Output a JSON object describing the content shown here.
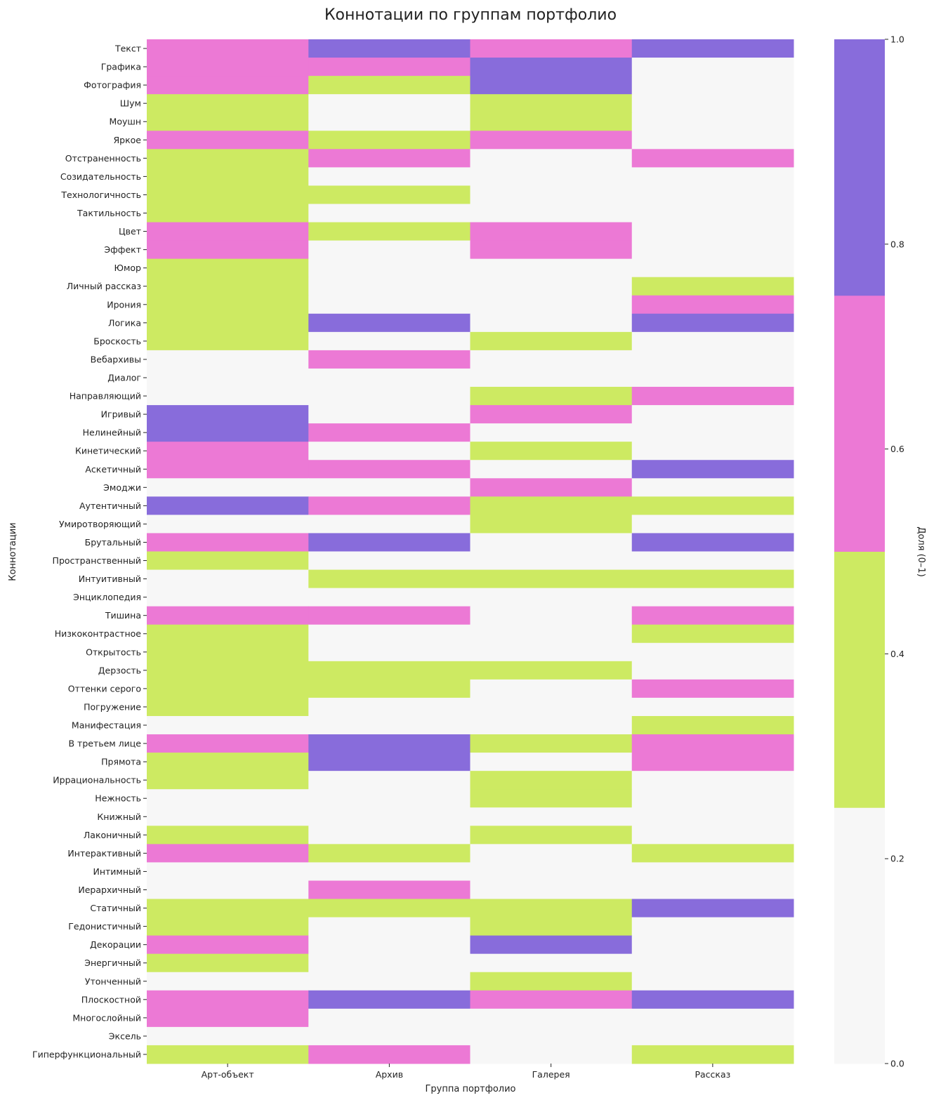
{
  "chart_data": {
    "type": "heatmap",
    "title": "Коннотации по группам портфолио",
    "xlabel": "Группа портфолио",
    "ylabel": "Коннотации",
    "colorbar": {
      "label": "Доля (0–1)",
      "range": [
        0,
        1
      ],
      "ticks": [
        "0.0",
        "0.2",
        "0.4",
        "0.6",
        "0.8",
        "1.0"
      ],
      "bins": [
        {
          "max": 0.25,
          "color": "#f7f7f7"
        },
        {
          "max": 0.5,
          "color": "#cdea62"
        },
        {
          "max": 0.75,
          "color": "#ec79d5"
        },
        {
          "max": 1.0,
          "color": "#886cdb"
        }
      ]
    },
    "columns": [
      "Арт-объект",
      "Архив",
      "Галерея",
      "Рассказ"
    ],
    "rows": [
      {
        "label": "Текст",
        "values": [
          0.67,
          1,
          0.67,
          1
        ]
      },
      {
        "label": "Графика",
        "values": [
          0.67,
          0.67,
          1,
          0
        ]
      },
      {
        "label": "Фотография",
        "values": [
          0.67,
          0.33,
          1,
          0
        ]
      },
      {
        "label": "Шум",
        "values": [
          0.33,
          0,
          0.33,
          0
        ]
      },
      {
        "label": "Моушн",
        "values": [
          0.33,
          0,
          0.33,
          0
        ]
      },
      {
        "label": "Яркое",
        "values": [
          0.67,
          0.33,
          0.67,
          0
        ]
      },
      {
        "label": "Отстраненность",
        "values": [
          0.33,
          0.67,
          0,
          0.67
        ]
      },
      {
        "label": "Созидательность",
        "values": [
          0.33,
          0,
          0,
          0
        ]
      },
      {
        "label": "Технологичность",
        "values": [
          0.33,
          0.33,
          0,
          0
        ]
      },
      {
        "label": "Тактильность",
        "values": [
          0.33,
          0,
          0,
          0
        ]
      },
      {
        "label": "Цвет",
        "values": [
          0.67,
          0.33,
          0.67,
          0
        ]
      },
      {
        "label": "Эффект",
        "values": [
          0.67,
          0,
          0.67,
          0
        ]
      },
      {
        "label": "Юмор",
        "values": [
          0.33,
          0,
          0,
          0
        ]
      },
      {
        "label": "Личный рассказ",
        "values": [
          0.33,
          0,
          0,
          0.33
        ]
      },
      {
        "label": "Ирония",
        "values": [
          0.33,
          0,
          0,
          0.67
        ]
      },
      {
        "label": "Логика",
        "values": [
          0.33,
          1,
          0,
          1
        ]
      },
      {
        "label": "Броскость",
        "values": [
          0.33,
          0,
          0.33,
          0
        ]
      },
      {
        "label": "Вебархивы",
        "values": [
          0,
          0.67,
          0,
          0
        ]
      },
      {
        "label": "Диалог",
        "values": [
          0,
          0,
          0,
          0
        ]
      },
      {
        "label": "Направляющий",
        "values": [
          0,
          0,
          0.33,
          0.67
        ]
      },
      {
        "label": "Игривый",
        "values": [
          1,
          0,
          0.67,
          0
        ]
      },
      {
        "label": "Нелинейный",
        "values": [
          1,
          0.67,
          0,
          0
        ]
      },
      {
        "label": "Кинетический",
        "values": [
          0.67,
          0,
          0.33,
          0
        ]
      },
      {
        "label": "Аскетичный",
        "values": [
          0.67,
          0.67,
          0,
          1
        ]
      },
      {
        "label": "Эмоджи",
        "values": [
          0,
          0,
          0.67,
          0
        ]
      },
      {
        "label": "Аутентичный",
        "values": [
          1,
          0.67,
          0.33,
          0.33
        ]
      },
      {
        "label": "Умиротворяющий",
        "values": [
          0,
          0,
          0.33,
          0
        ]
      },
      {
        "label": "Брутальный",
        "values": [
          0.67,
          1,
          0,
          1
        ]
      },
      {
        "label": "Пространственный",
        "values": [
          0.33,
          0,
          0,
          0
        ]
      },
      {
        "label": "Интуитивный",
        "values": [
          0,
          0.33,
          0.33,
          0.33
        ]
      },
      {
        "label": "Энциклопедия",
        "values": [
          0,
          0,
          0,
          0
        ]
      },
      {
        "label": "Тишина",
        "values": [
          0.67,
          0.67,
          0,
          0.67
        ]
      },
      {
        "label": "Низкоконтрастное",
        "values": [
          0.33,
          0,
          0,
          0.33
        ]
      },
      {
        "label": "Открытость",
        "values": [
          0.33,
          0,
          0,
          0
        ]
      },
      {
        "label": "Дерзость",
        "values": [
          0.33,
          0.33,
          0.33,
          0
        ]
      },
      {
        "label": "Оттенки серого",
        "values": [
          0.33,
          0.33,
          0,
          0.67
        ]
      },
      {
        "label": "Погружение",
        "values": [
          0.33,
          0,
          0,
          0
        ]
      },
      {
        "label": "Манифестация",
        "values": [
          0,
          0,
          0,
          0.33
        ]
      },
      {
        "label": "В третьем лице",
        "values": [
          0.67,
          1,
          0.33,
          0.67
        ]
      },
      {
        "label": "Прямота",
        "values": [
          0.33,
          1,
          0,
          0.67
        ]
      },
      {
        "label": "Иррациональность",
        "values": [
          0.33,
          0,
          0.33,
          0
        ]
      },
      {
        "label": "Нежность",
        "values": [
          0,
          0,
          0.33,
          0
        ]
      },
      {
        "label": "Книжный",
        "values": [
          0,
          0,
          0,
          0
        ]
      },
      {
        "label": "Лаконичный",
        "values": [
          0.33,
          0,
          0.33,
          0
        ]
      },
      {
        "label": "Интерактивный",
        "values": [
          0.67,
          0.33,
          0,
          0.33
        ]
      },
      {
        "label": "Интимный",
        "values": [
          0,
          0,
          0,
          0
        ]
      },
      {
        "label": "Иерархичный",
        "values": [
          0,
          0.67,
          0,
          0
        ]
      },
      {
        "label": "Статичный",
        "values": [
          0.33,
          0.33,
          0.33,
          1
        ]
      },
      {
        "label": "Гедонистичный",
        "values": [
          0.33,
          0,
          0.33,
          0
        ]
      },
      {
        "label": "Декорации",
        "values": [
          0.67,
          0,
          1,
          0
        ]
      },
      {
        "label": "Энергичный",
        "values": [
          0.33,
          0,
          0,
          0
        ]
      },
      {
        "label": "Утонченный",
        "values": [
          0,
          0,
          0.33,
          0
        ]
      },
      {
        "label": "Плоскостной",
        "values": [
          0.67,
          1,
          0.67,
          1
        ]
      },
      {
        "label": "Многослойный",
        "values": [
          0.67,
          0,
          0,
          0
        ]
      },
      {
        "label": "Эксель",
        "values": [
          0,
          0,
          0,
          0
        ]
      },
      {
        "label": "Гиперфункциональный",
        "values": [
          0.33,
          0.67,
          0,
          0.33
        ]
      }
    ]
  }
}
